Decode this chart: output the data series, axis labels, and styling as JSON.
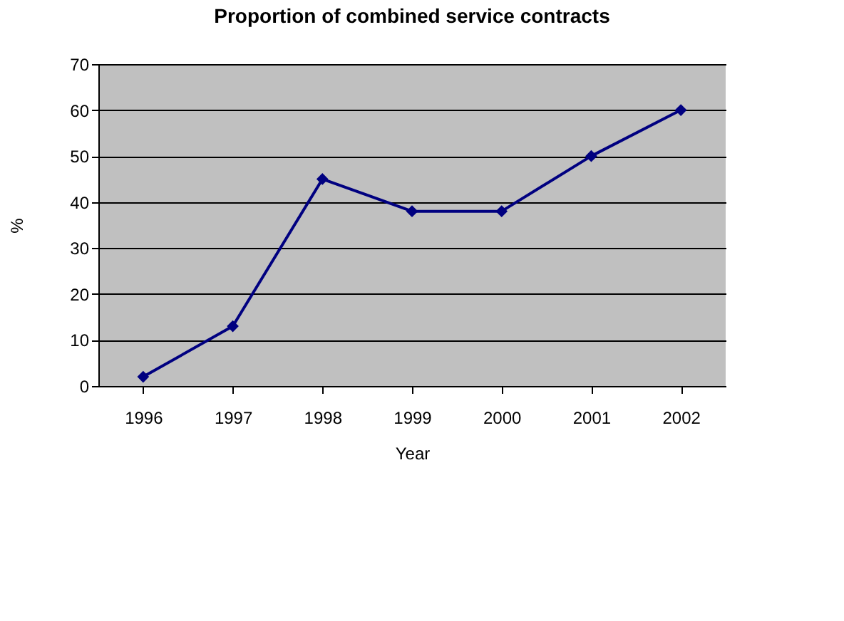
{
  "chart_data": {
    "type": "line",
    "title": "Proportion of combined service contracts",
    "xlabel": "Year",
    "ylabel": "%",
    "categories": [
      "1996",
      "1997",
      "1998",
      "1999",
      "2000",
      "2001",
      "2002"
    ],
    "series": [
      {
        "color": "#000080",
        "values": [
          2,
          13,
          45,
          38,
          38,
          50,
          60
        ]
      }
    ],
    "ylim": [
      0,
      70
    ],
    "yticks": [
      0,
      10,
      20,
      30,
      40,
      50,
      60,
      70
    ],
    "grid": "y",
    "marker": "diamond",
    "line_style": "solid"
  }
}
